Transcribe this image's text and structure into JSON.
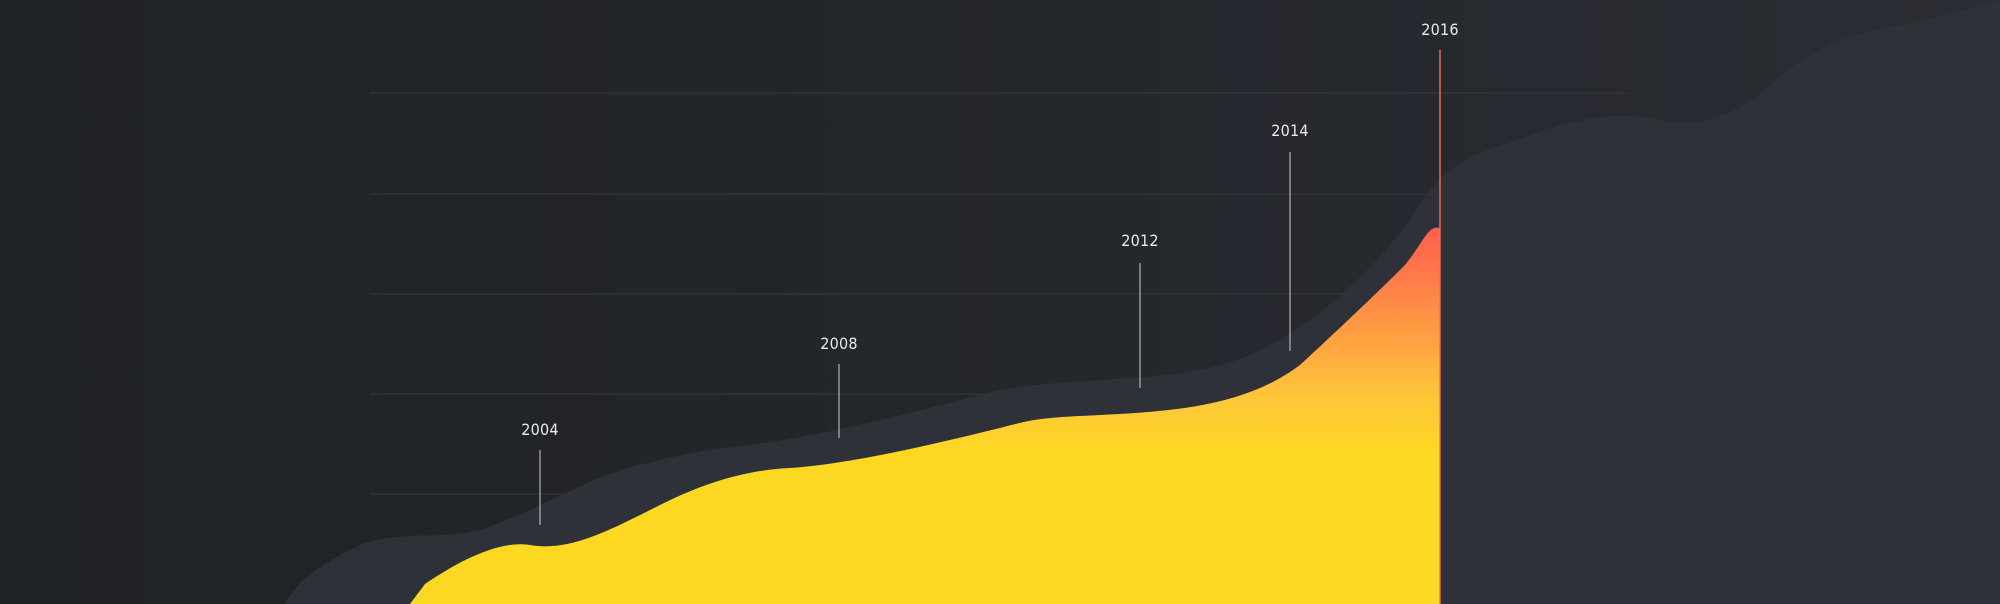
{
  "chart_data": {
    "type": "area",
    "title": "",
    "xlabel": "",
    "ylabel": "",
    "grid": true,
    "xlim": [
      2002.5,
      2016.5
    ],
    "annotations": [
      "2004",
      "2008",
      "2012",
      "2014",
      "2016"
    ],
    "highlight_year": "2016",
    "colors": {
      "background": "#212429",
      "background_area": "#2e3137",
      "gridline": "#34373a",
      "fill_bottom": "#fdd823",
      "fill_mid": "#ffb13a",
      "fill_top": "#ff5d4e",
      "marker": "#ececec",
      "marker_highlight": "#ff6a5b"
    }
  }
}
